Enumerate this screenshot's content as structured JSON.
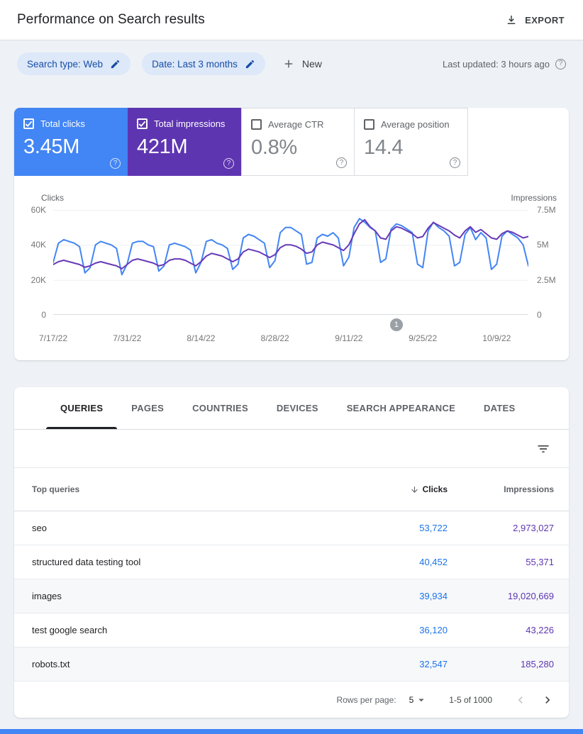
{
  "header": {
    "title": "Performance on Search results",
    "export_label": "EXPORT"
  },
  "filter_bar": {
    "search_type_chip": "Search type: Web",
    "date_chip": "Date: Last 3 months",
    "new_button": "New",
    "last_updated": "Last updated: 3 hours ago"
  },
  "colors": {
    "clicks_blue": "#4285f4",
    "impressions_purple": "#5e35b1",
    "clicks_link": "#1a73e8"
  },
  "metrics": {
    "cards": [
      {
        "label": "Total clicks",
        "value": "3.45M",
        "selected": true
      },
      {
        "label": "Total impressions",
        "value": "421M",
        "selected": true
      },
      {
        "label": "Average CTR",
        "value": "0.8%",
        "selected": false
      },
      {
        "label": "Average position",
        "value": "14.4",
        "selected": false
      }
    ]
  },
  "chart_data": {
    "type": "line",
    "grid": true,
    "legend_position": "none",
    "left_axis": {
      "label": "Clicks",
      "ticks": [
        "60K",
        "40K",
        "20K",
        "0"
      ],
      "max": 60000,
      "min": 0
    },
    "right_axis": {
      "label": "Impressions",
      "ticks": [
        "7.5M",
        "5M",
        "2.5M",
        "0"
      ],
      "max": 7500000,
      "min": 0
    },
    "x_tick_labels": [
      "7/17/22",
      "7/31/22",
      "8/14/22",
      "8/28/22",
      "9/11/22",
      "9/25/22",
      "10/9/22"
    ],
    "annotation": {
      "label": "1",
      "day_index": 65
    },
    "series": [
      {
        "name": "Clicks",
        "axis": "left",
        "color": "#4285f4",
        "values": [
          30000,
          41000,
          43000,
          42000,
          41000,
          39000,
          24000,
          27000,
          40000,
          42000,
          41000,
          40000,
          38000,
          23000,
          29000,
          41000,
          42000,
          42000,
          40000,
          39000,
          25000,
          28000,
          40000,
          41000,
          40000,
          39000,
          37000,
          24000,
          30000,
          42000,
          43000,
          41000,
          40000,
          38000,
          26000,
          29000,
          44000,
          46000,
          45000,
          43000,
          41000,
          27000,
          31000,
          47000,
          50000,
          50000,
          48000,
          46000,
          29000,
          30000,
          44000,
          46000,
          45000,
          47000,
          44000,
          28000,
          33000,
          50000,
          55000,
          53000,
          50000,
          48000,
          30000,
          32000,
          49000,
          52000,
          51000,
          49000,
          47000,
          29000,
          27000,
          48000,
          53000,
          50000,
          48000,
          45000,
          28000,
          30000,
          46000,
          50000,
          43000,
          47000,
          44000,
          26000,
          29000,
          45000,
          48000,
          46000,
          44000,
          40000,
          28000
        ]
      },
      {
        "name": "Impressions",
        "axis": "right",
        "color": "#673ab7",
        "values": [
          3600000,
          3800000,
          3900000,
          3800000,
          3700000,
          3600000,
          3400000,
          3500000,
          3700000,
          3800000,
          3700000,
          3600000,
          3500000,
          3300000,
          3600000,
          3900000,
          4000000,
          3900000,
          3800000,
          3700000,
          3500000,
          3600000,
          3900000,
          4000000,
          4000000,
          3900000,
          3700000,
          3500000,
          3800000,
          4200000,
          4400000,
          4300000,
          4200000,
          4000000,
          3800000,
          4000000,
          4500000,
          4700000,
          4600000,
          4500000,
          4300000,
          4100000,
          4300000,
          4800000,
          5000000,
          5000000,
          4900000,
          4700000,
          4400000,
          4500000,
          5000000,
          5200000,
          5100000,
          5000000,
          4800000,
          4600000,
          5000000,
          5800000,
          6500000,
          6800000,
          6300000,
          6000000,
          5500000,
          5400000,
          6000000,
          6300000,
          6200000,
          6000000,
          5800000,
          5500000,
          5600000,
          6200000,
          6600000,
          6400000,
          6200000,
          6000000,
          5700000,
          5500000,
          6000000,
          6300000,
          5900000,
          6100000,
          5800000,
          5500000,
          5400000,
          5800000,
          6000000,
          5900000,
          5700000,
          5500000,
          5600000
        ]
      }
    ]
  },
  "tabs": [
    {
      "label": "QUERIES",
      "active": true
    },
    {
      "label": "PAGES",
      "active": false
    },
    {
      "label": "COUNTRIES",
      "active": false
    },
    {
      "label": "DEVICES",
      "active": false
    },
    {
      "label": "SEARCH APPEARANCE",
      "active": false
    },
    {
      "label": "DATES",
      "active": false
    }
  ],
  "table": {
    "header": {
      "queries": "Top queries",
      "clicks": "Clicks",
      "impressions": "Impressions"
    },
    "rows": [
      {
        "query": "seo",
        "clicks": "53,722",
        "impressions": "2,973,027"
      },
      {
        "query": "structured data testing tool",
        "clicks": "40,452",
        "impressions": "55,371"
      },
      {
        "query": "images",
        "clicks": "39,934",
        "impressions": "19,020,669"
      },
      {
        "query": "test google search",
        "clicks": "36,120",
        "impressions": "43,226"
      },
      {
        "query": "robots.txt",
        "clicks": "32,547",
        "impressions": "185,280"
      }
    ]
  },
  "pagination": {
    "rows_per_page_label": "Rows per page:",
    "rows_per_page_value": "5",
    "range_text": "1-5 of 1000"
  }
}
